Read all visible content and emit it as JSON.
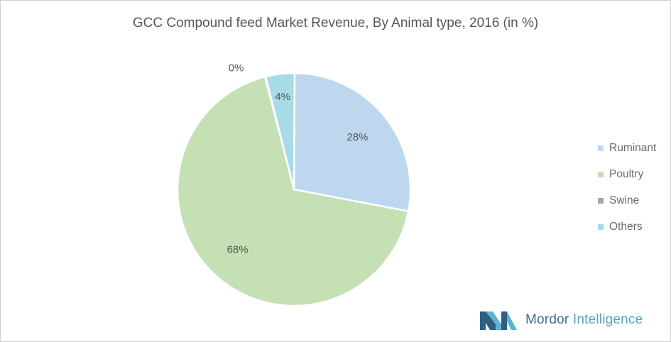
{
  "chart_data": {
    "type": "pie",
    "title": "GCC Compound feed Market Revenue, By Animal type, 2016 (in %)",
    "categories": [
      "Ruminant",
      "Poultry",
      "Swine",
      "Others"
    ],
    "values": [
      28,
      68,
      0,
      4
    ],
    "data_labels": [
      "28%",
      "68%",
      "0%",
      "4%"
    ],
    "colors": [
      "#bdd7ee",
      "#c5e0b4",
      "#a5a5a5",
      "#a9dbe6"
    ],
    "legend_position": "right"
  },
  "branding": {
    "brand_main": "Mordor",
    "brand_sub": "Intelligence"
  }
}
